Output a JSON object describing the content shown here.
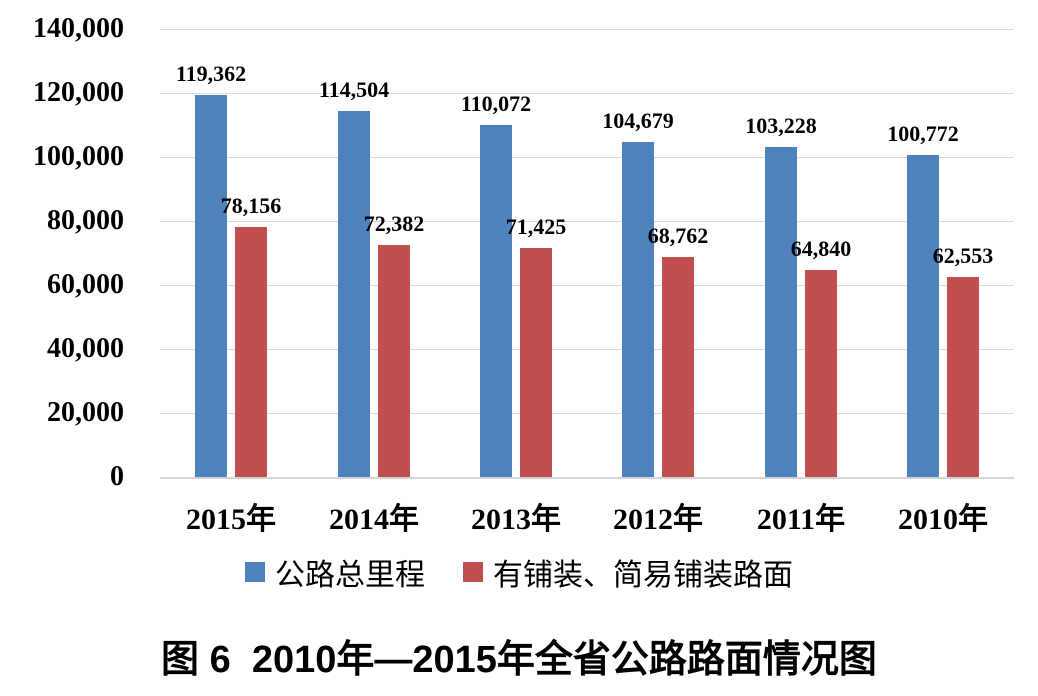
{
  "chart_data": {
    "type": "bar",
    "title": "图 6  2010年—2015年全省公路路面情况图",
    "categories": [
      "2015年",
      "2014年",
      "2013年",
      "2012年",
      "2011年",
      "2010年"
    ],
    "series": [
      {
        "name": "公路总里程",
        "color": "#4F81BD",
        "values": [
          119362,
          114504,
          110072,
          104679,
          103228,
          100772
        ],
        "labels": [
          "119,362",
          "114,504",
          "110,072",
          "104,679",
          "103,228",
          "100,772"
        ]
      },
      {
        "name": "有铺装、简易铺装路面",
        "color": "#C0504D",
        "values": [
          78156,
          72382,
          71425,
          68762,
          64840,
          62553
        ],
        "labels": [
          "78,156",
          "72,382",
          "71,425",
          "68,762",
          "64,840",
          "62,553"
        ]
      }
    ],
    "xlabel": "",
    "ylabel": "",
    "ylim": [
      0,
      140000
    ],
    "yticks": [
      0,
      20000,
      40000,
      60000,
      80000,
      100000,
      120000,
      140000
    ],
    "ytick_labels": [
      "0",
      "20,000",
      "40,000",
      "60,000",
      "80,000",
      "100,000",
      "120,000",
      "140,000"
    ],
    "grid": true,
    "legend_position": "bottom",
    "colors": {
      "gridline": "#D9D9D9",
      "axis_line": "#D4D4D4",
      "text": "#000000",
      "background": "#FFFFFF"
    }
  }
}
